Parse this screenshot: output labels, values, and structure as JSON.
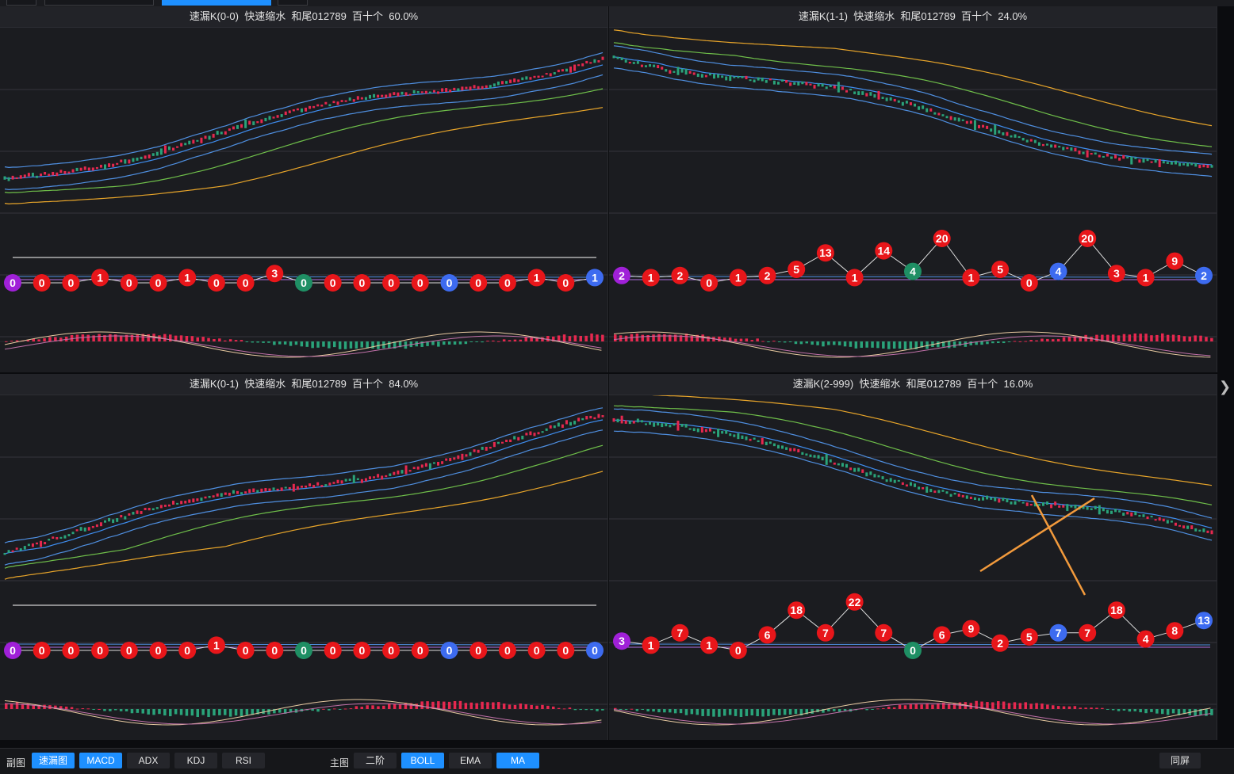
{
  "colors": {
    "up": "#e6284f",
    "down": "#2aa37a",
    "bubble_red": "#e8161a",
    "bubble_blue": "#3d6bf0",
    "bubble_green": "#1f8f64",
    "bubble_purple": "#a020d8",
    "accent": "#1e90ff",
    "orange_line": "#f29a3c"
  },
  "panels": [
    {
      "title": "速漏K(0-0)  快速缩水  和尾012789  百十个  60.0%",
      "trend": "up",
      "bubbles": [
        "0",
        "0",
        "0",
        "1",
        "0",
        "0",
        "1",
        "0",
        "0",
        "3",
        "0",
        "0",
        "0",
        "0",
        "0",
        "0",
        "0",
        "0",
        "1",
        "0",
        "1"
      ],
      "bubble_colors": [
        "purple",
        "red",
        "red",
        "red",
        "red",
        "red",
        "red",
        "red",
        "red",
        "red",
        "green",
        "red",
        "red",
        "red",
        "red",
        "blue",
        "red",
        "red",
        "red",
        "red",
        "blue"
      ]
    },
    {
      "title": "速漏K(1-1)  快速缩水  和尾012789  百十个  24.0%",
      "trend": "down",
      "bubbles": [
        "2",
        "1",
        "2",
        "0",
        "1",
        "2",
        "5",
        "13",
        "1",
        "14",
        "4",
        "20",
        "1",
        "5",
        "0",
        "4",
        "20",
        "3",
        "1",
        "9",
        "2"
      ],
      "bubble_colors": [
        "purple",
        "red",
        "red",
        "red",
        "red",
        "red",
        "red",
        "red",
        "red",
        "red",
        "green",
        "red",
        "red",
        "red",
        "red",
        "blue",
        "red",
        "red",
        "red",
        "red",
        "blue"
      ]
    },
    {
      "title": "速漏K(0-1)  快速缩水  和尾012789  百十个  84.0%",
      "trend": "up",
      "bubbles": [
        "0",
        "0",
        "0",
        "0",
        "0",
        "0",
        "0",
        "1",
        "0",
        "0",
        "0",
        "0",
        "0",
        "0",
        "0",
        "0",
        "0",
        "0",
        "0",
        "0",
        "0"
      ],
      "bubble_colors": [
        "purple",
        "red",
        "red",
        "red",
        "red",
        "red",
        "red",
        "red",
        "red",
        "red",
        "green",
        "red",
        "red",
        "red",
        "red",
        "blue",
        "red",
        "red",
        "red",
        "red",
        "blue"
      ]
    },
    {
      "title": "速漏K(2-999)  快速缩水  和尾012789  百十个  16.0%",
      "trend": "down",
      "bubbles": [
        "3",
        "1",
        "7",
        "1",
        "0",
        "6",
        "18",
        "7",
        "22",
        "7",
        "0",
        "6",
        "9",
        "2",
        "5",
        "7",
        "7",
        "18",
        "4",
        "8",
        "13"
      ],
      "bubble_colors": [
        "purple",
        "red",
        "red",
        "red",
        "red",
        "red",
        "red",
        "red",
        "red",
        "red",
        "green",
        "red",
        "red",
        "red",
        "red",
        "blue",
        "red",
        "red",
        "red",
        "red",
        "blue"
      ]
    }
  ],
  "bottom": {
    "sub_label": "副图",
    "sub_buttons": [
      {
        "label": "速漏图",
        "active": true
      },
      {
        "label": "MACD",
        "active": true
      },
      {
        "label": "ADX",
        "active": false
      },
      {
        "label": "KDJ",
        "active": false
      },
      {
        "label": "RSI",
        "active": false
      }
    ],
    "main_label": "主图",
    "main_buttons": [
      {
        "label": "二阶",
        "active": false
      },
      {
        "label": "BOLL",
        "active": true
      },
      {
        "label": "EMA",
        "active": false
      },
      {
        "label": "MA",
        "active": true
      }
    ],
    "same_screen": "同屏"
  },
  "side_arrow_icon": "chevron-right-icon"
}
